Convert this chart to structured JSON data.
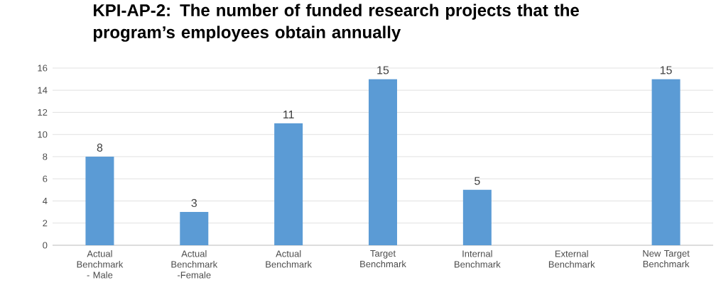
{
  "chart_data": {
    "type": "bar",
    "title": "KPI-AP-2: The number of funded research projects that the program’s employees obtain annually",
    "categories": [
      "Actual Benchmark - Male",
      "Actual Benchmark -Female",
      "Actual Benchmark",
      "Target Benchmark",
      "Internal Benchmark",
      "External Benchmark",
      "New Target Benchmark"
    ],
    "values": [
      8,
      3,
      11,
      15,
      5,
      null,
      15
    ],
    "color": "#5b9bd5",
    "ylim": [
      0,
      16
    ],
    "yticks": [
      0,
      2,
      4,
      6,
      8,
      10,
      12,
      14,
      16
    ],
    "grid": "y",
    "data_labels": true
  }
}
